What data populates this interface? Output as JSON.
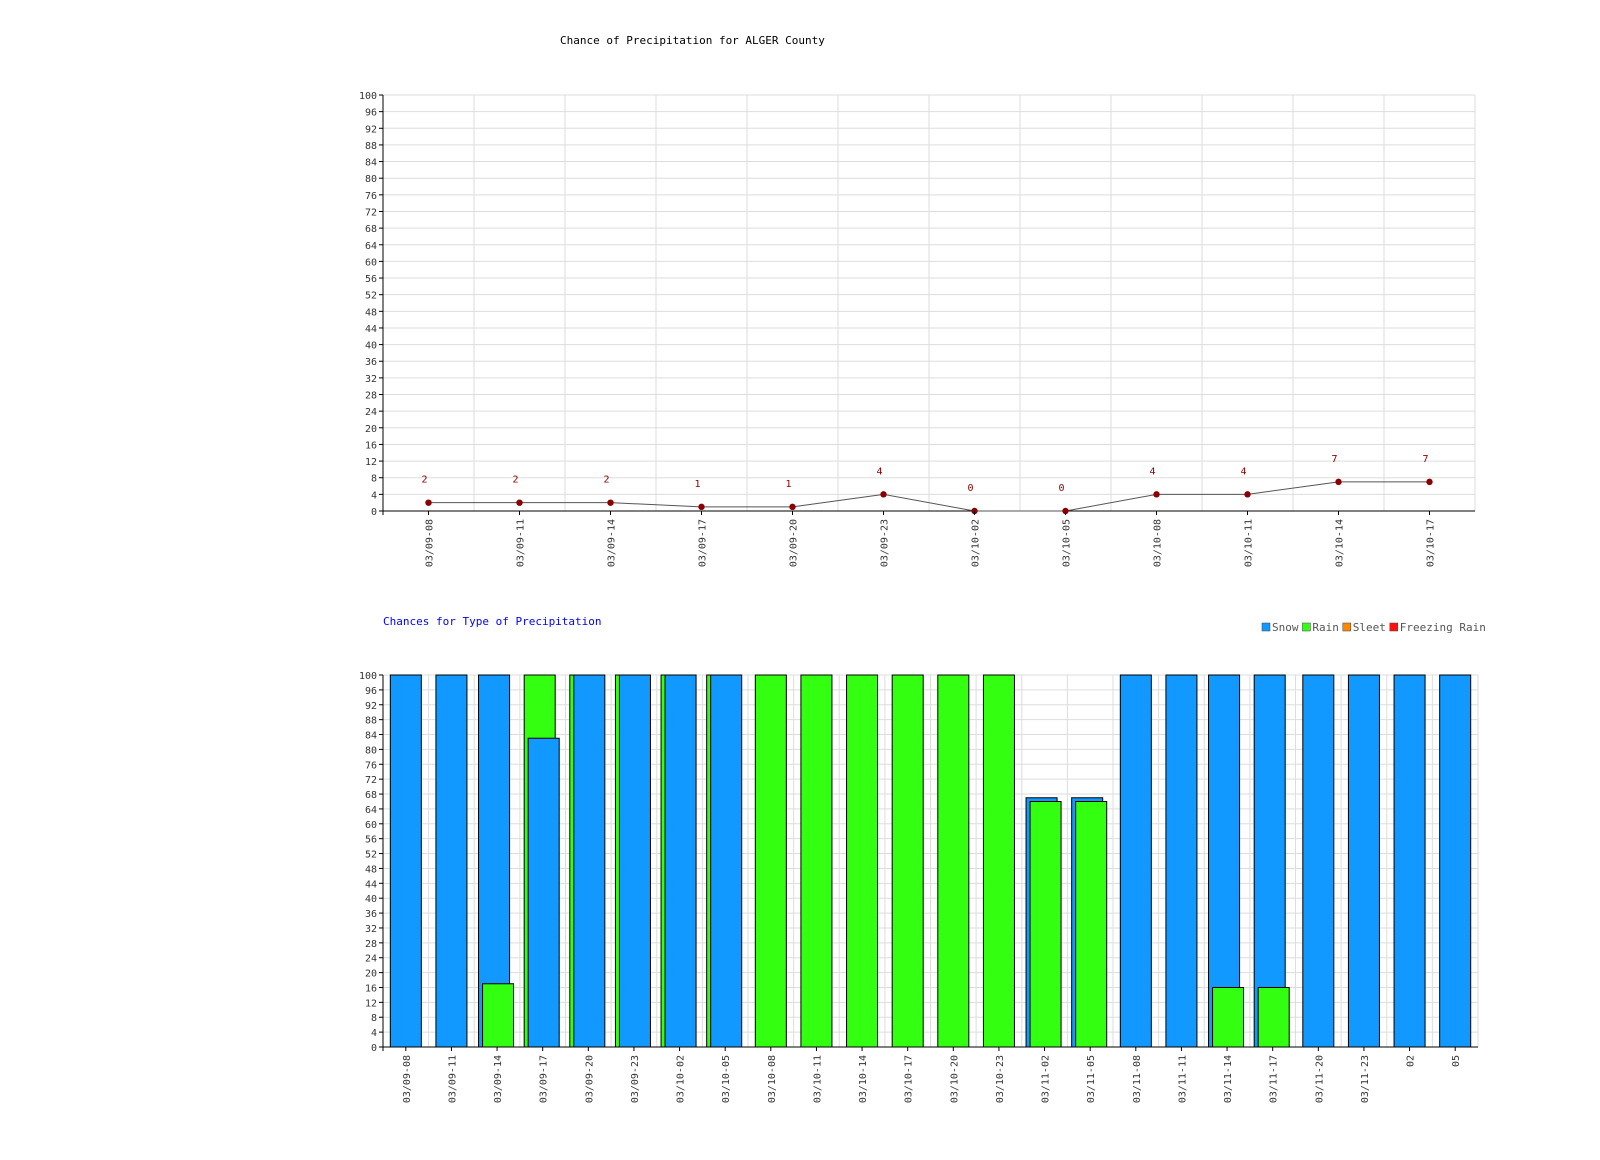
{
  "chart_data": [
    {
      "type": "line",
      "title": "Chance of Precipitation for ALGER County",
      "x": [
        "03/09-08",
        "03/09-11",
        "03/09-14",
        "03/09-17",
        "03/09-20",
        "03/09-23",
        "03/10-02",
        "03/10-05",
        "03/10-08",
        "03/10-11",
        "03/10-14",
        "03/10-17"
      ],
      "values": [
        2,
        2,
        2,
        1,
        1,
        4,
        0,
        0,
        4,
        4,
        7,
        7
      ],
      "ylim": [
        0,
        100
      ],
      "ytick_step": 4,
      "grid": true,
      "colors": {
        "line": "#555555",
        "marker": "#8b0000",
        "label": "#8b0000",
        "grid": "#dddddd"
      }
    },
    {
      "type": "bar",
      "title": "Chances for Type of Precipitation",
      "categories": [
        "03/09-08",
        "03/09-11",
        "03/09-14",
        "03/09-17",
        "03/09-20",
        "03/09-23",
        "03/10-02",
        "03/10-05",
        "03/10-08",
        "03/10-11",
        "03/10-14",
        "03/10-17",
        "03/10-20",
        "03/10-23",
        "03/11-02",
        "03/11-05",
        "03/11-08",
        "03/11-11",
        "03/11-14",
        "03/11-17",
        "03/11-20",
        "03/11-23",
        "02",
        "05"
      ],
      "series": [
        {
          "name": "Snow",
          "color": "#1199ff",
          "values": [
            100,
            100,
            100,
            83,
            100,
            100,
            100,
            100,
            0,
            0,
            0,
            0,
            0,
            0,
            67,
            67,
            100,
            100,
            100,
            100,
            100,
            100,
            100,
            100
          ]
        },
        {
          "name": "Rain",
          "color": "#33ff11",
          "values": [
            0,
            0,
            17,
            100,
            100,
            100,
            100,
            100,
            100,
            100,
            100,
            100,
            100,
            100,
            66,
            66,
            0,
            0,
            16,
            16,
            0,
            0,
            0,
            0
          ]
        },
        {
          "name": "Sleet",
          "color": "#ff8800",
          "values": [
            0,
            0,
            0,
            0,
            0,
            0,
            0,
            0,
            0,
            0,
            0,
            0,
            0,
            0,
            0,
            0,
            0,
            0,
            0,
            0,
            0,
            0,
            0,
            0
          ]
        },
        {
          "name": "Freezing Rain",
          "color": "#ff1111",
          "values": [
            0,
            0,
            0,
            0,
            0,
            0,
            0,
            0,
            0,
            0,
            0,
            0,
            0,
            0,
            0,
            0,
            0,
            0,
            0,
            0,
            0,
            0,
            0,
            0
          ]
        }
      ],
      "ylim": [
        0,
        100
      ],
      "ytick_step": 4,
      "grid": true,
      "legend": "top-right",
      "title_color": "#0000ff"
    }
  ]
}
